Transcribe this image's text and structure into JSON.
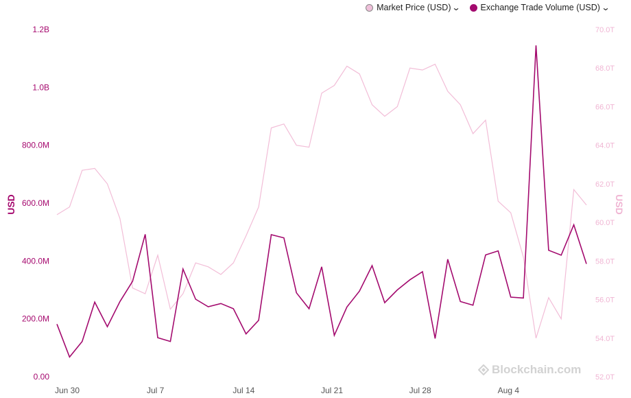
{
  "legend": {
    "series1_label": "Market Price (USD)",
    "series2_label": "Exchange Trade Volume (USD)"
  },
  "axes": {
    "left_title": "USD",
    "right_title": "USD"
  },
  "watermark": "Blockchain.com",
  "colors": {
    "price": "#f2bdd7",
    "price_dot": "#efc0da",
    "volume": "#a30a6e",
    "left_tick": "#a5086e",
    "right_tick": "#f0b5d3",
    "x_tick": "#555555"
  },
  "chart_data": {
    "type": "line",
    "x_labels": [
      "Jun 30",
      "Jul 7",
      "Jul 14",
      "Jul 21",
      "Jul 28",
      "Aug 4"
    ],
    "x_label_index": [
      0,
      7,
      14,
      21,
      28,
      35
    ],
    "y_left": {
      "label": "USD",
      "range": [
        0,
        1200000000
      ],
      "ticks": [
        "0.00",
        "200.0M",
        "400.0M",
        "600.0M",
        "800.0M",
        "1.0B",
        "1.2B"
      ]
    },
    "y_right": {
      "label": "USD",
      "range": [
        52,
        70
      ],
      "ticks": [
        "52.0T",
        "54.0T",
        "56.0T",
        "58.0T",
        "60.0T",
        "62.0T",
        "64.0T",
        "66.0T",
        "68.0T",
        "70.0T"
      ]
    },
    "series": [
      {
        "name": "Market Price (USD)",
        "axis": "right",
        "values": [
          60.4,
          60.8,
          62.7,
          62.8,
          62.0,
          60.2,
          56.6,
          56.3,
          58.3,
          55.5,
          56.3,
          57.9,
          57.7,
          57.3,
          57.9,
          59.3,
          60.8,
          64.9,
          65.1,
          64.0,
          63.9,
          66.7,
          67.1,
          68.1,
          67.7,
          66.1,
          65.5,
          66.0,
          68.0,
          67.9,
          68.2,
          66.8,
          66.1,
          64.6,
          65.3,
          61.1,
          60.5,
          58.2,
          54.0,
          56.1,
          55.0,
          61.7,
          60.9
        ]
      },
      {
        "name": "Exchange Trade Volume (USD)",
        "axis": "left",
        "values": [
          182000000,
          68000000,
          122000000,
          258000000,
          173000000,
          260000000,
          330000000,
          492000000,
          135000000,
          122000000,
          372000000,
          268000000,
          242000000,
          253000000,
          235000000,
          148000000,
          195000000,
          491000000,
          480000000,
          290000000,
          235000000,
          380000000,
          143000000,
          241000000,
          296000000,
          384000000,
          256000000,
          300000000,
          335000000,
          363000000,
          132000000,
          406000000,
          260000000,
          247000000,
          421000000,
          435000000,
          275000000,
          272000000,
          1145000000,
          437000000,
          420000000,
          525000000,
          390000000
        ]
      }
    ]
  }
}
